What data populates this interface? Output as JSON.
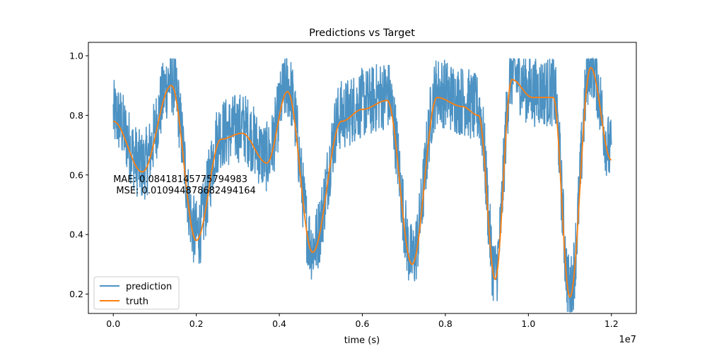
{
  "chart_data": {
    "type": "line",
    "title": "Predictions vs Target",
    "xlabel": "time (s)",
    "ylabel": "",
    "x_offset_label": "1e7",
    "xlim": [
      -0.06,
      1.26
    ],
    "ylim": [
      0.135,
      1.045
    ],
    "x_ticks": [
      0.0,
      0.2,
      0.4,
      0.6,
      0.8,
      1.0,
      1.2
    ],
    "x_tick_labels": [
      "0.0",
      "0.2",
      "0.4",
      "0.6",
      "0.8",
      "1.0",
      "1.2"
    ],
    "y_ticks": [
      0.2,
      0.4,
      0.6,
      0.8,
      1.0
    ],
    "y_tick_labels": [
      "0.2",
      "0.4",
      "0.6",
      "0.8",
      "1.0"
    ],
    "grid": false,
    "legend_position": "lower-left",
    "annotation": {
      "lines": [
        "MAE: 0.08418145775794983",
        " MSE: 0.010944878682494164"
      ],
      "x": 0.0,
      "y": 0.55
    },
    "series": [
      {
        "name": "prediction",
        "color": "#1f77b4",
        "alpha": 0.8,
        "style": "noisy band around truth, spread about 0.15"
      },
      {
        "name": "truth",
        "color": "#ff7f0e",
        "x_end": 1.2,
        "keypoints_x": [
          0.0,
          0.07,
          0.14,
          0.2,
          0.26,
          0.31,
          0.37,
          0.42,
          0.48,
          0.55,
          0.6,
          0.66,
          0.72,
          0.78,
          0.84,
          0.88,
          0.92,
          0.96,
          1.01,
          1.06,
          1.1,
          1.15,
          1.2
        ],
        "keypoints_y": [
          0.78,
          0.61,
          0.9,
          0.38,
          0.72,
          0.74,
          0.64,
          0.88,
          0.34,
          0.78,
          0.82,
          0.85,
          0.3,
          0.86,
          0.83,
          0.8,
          0.25,
          0.92,
          0.86,
          0.86,
          0.19,
          0.96,
          0.65
        ]
      }
    ]
  }
}
